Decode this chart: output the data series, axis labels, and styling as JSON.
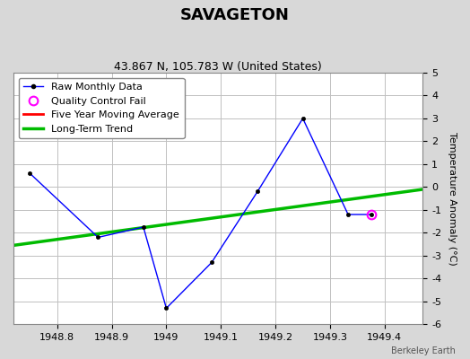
{
  "title": "SAVAGETON",
  "subtitle": "43.867 N, 105.783 W (United States)",
  "raw_x": [
    1948.75,
    1948.875,
    1948.958,
    1949.0,
    1949.083,
    1949.167,
    1949.25,
    1949.333,
    1949.375
  ],
  "raw_y": [
    0.6,
    -2.2,
    -1.75,
    -5.3,
    -3.3,
    -0.2,
    3.0,
    -1.2,
    -1.2
  ],
  "qc_fail_x": [
    1949.375
  ],
  "qc_fail_y": [
    -1.2
  ],
  "trend_x": [
    1948.72,
    1949.47
  ],
  "trend_y": [
    -2.55,
    -0.1
  ],
  "five_yr_x": [],
  "five_yr_y": [],
  "xlim": [
    1948.72,
    1949.47
  ],
  "ylim": [
    -6,
    5
  ],
  "yticks": [
    -6,
    -5,
    -4,
    -3,
    -2,
    -1,
    0,
    1,
    2,
    3,
    4,
    5
  ],
  "xtick_vals": [
    1948.8,
    1948.9,
    1949.0,
    1949.1,
    1949.2,
    1949.3,
    1949.4
  ],
  "xtick_labels": [
    "1948.8",
    "1948.9",
    "1949",
    "1949.1",
    "1949.2",
    "1949.3",
    "1949.4"
  ],
  "raw_color": "#0000ff",
  "trend_color": "#00bb00",
  "five_yr_color": "#ff0000",
  "qc_color": "#ff00ff",
  "bg_color": "#d8d8d8",
  "plot_bg_color": "#ffffff",
  "grid_color": "#c0c0c0",
  "ylabel": "Temperature Anomaly (°C)",
  "watermark": "Berkeley Earth",
  "title_fontsize": 13,
  "subtitle_fontsize": 9,
  "label_fontsize": 8,
  "tick_fontsize": 8,
  "legend_fontsize": 8
}
